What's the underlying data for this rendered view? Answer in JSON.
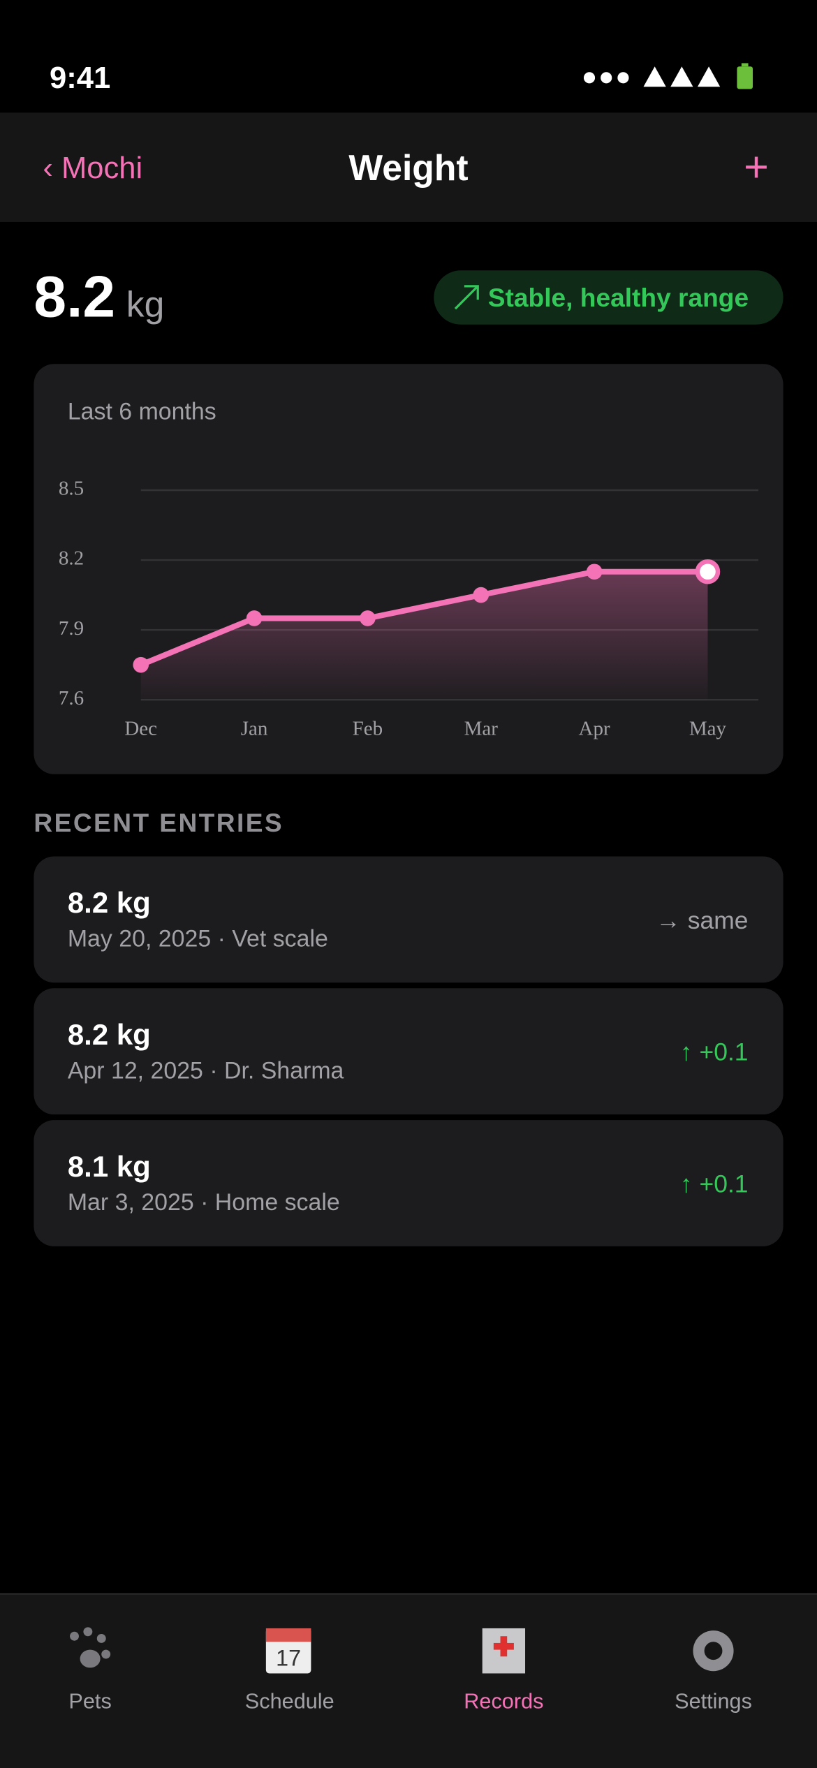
{
  "status_bar": {
    "time": "9:41"
  },
  "nav": {
    "back": "Mochi",
    "title": "Weight",
    "add": "+"
  },
  "summary": {
    "value": "8.2",
    "unit": "kg",
    "badge": "Stable, healthy range"
  },
  "chart_data": {
    "type": "line",
    "title": "Last 6 months",
    "categories": [
      "Dec",
      "Jan",
      "Feb",
      "Mar",
      "Apr",
      "May"
    ],
    "series": [
      {
        "name": "Weight",
        "color": "#f472b6",
        "values": [
          7.75,
          7.95,
          7.95,
          8.05,
          8.15,
          8.15
        ]
      }
    ],
    "ylim": [
      7.6,
      8.5
    ],
    "yticks": [
      7.6,
      7.9,
      8.2,
      8.5
    ],
    "grid": true
  },
  "recent": {
    "heading": "RECENT ENTRIES",
    "entries": [
      {
        "weight": "8.2 kg",
        "detail": "May 20, 2025 · Vet scale",
        "change": "→ same",
        "color": "#a1a1a6"
      },
      {
        "weight": "8.2 kg",
        "detail": "Apr 12, 2025 · Dr. Sharma",
        "change": "↑ +0.1",
        "color": "#34c759"
      },
      {
        "weight": "8.1 kg",
        "detail": "Mar 3, 2025 · Home scale",
        "change": "↑ +0.1",
        "color": "#34c759"
      }
    ]
  },
  "tabs": [
    {
      "label": "Pets"
    },
    {
      "label": "Schedule"
    },
    {
      "label": "Records",
      "active": true
    },
    {
      "label": "Settings"
    }
  ]
}
